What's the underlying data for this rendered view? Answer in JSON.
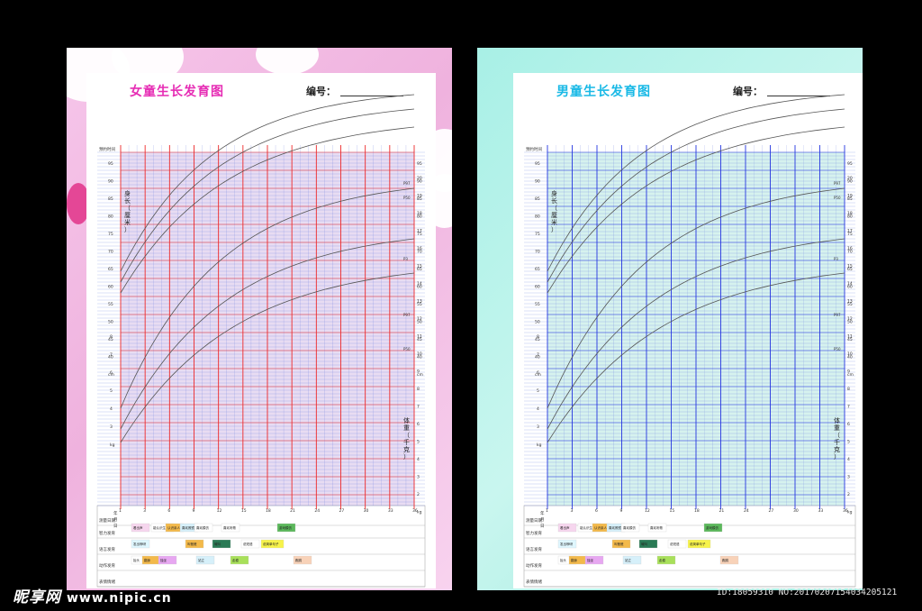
{
  "posters": [
    {
      "key": "girl",
      "title": "女童生长发育图",
      "number_label": "编号：",
      "colors": {
        "major": "#ef2a2a",
        "minor": "#6b7fe0",
        "shade": "#f3e5b0",
        "bg": "#e8dcf2"
      }
    },
    {
      "key": "boy",
      "title": "男童生长发育图",
      "number_label": "编号：",
      "colors": {
        "major": "#2838e0",
        "minor": "#6b7fe0",
        "shade": "#f3e5b0",
        "bg": "#d6f2ee"
      }
    }
  ],
  "chart_labels": {
    "top_row": "预约时间",
    "height_label": [
      "身",
      "长",
      "（",
      "厘",
      "米",
      "）"
    ],
    "weight_label": [
      "体",
      "重",
      "（",
      "千",
      "克",
      "）"
    ],
    "height_unit": "cm",
    "weight_unit": "kg",
    "height_ticks": [
      95,
      90,
      85,
      80,
      75,
      70,
      65,
      60,
      55,
      50,
      45,
      40,
      "cm"
    ],
    "weight_ticks_left": [
      8,
      7,
      6,
      5,
      4,
      3,
      "kg"
    ],
    "weight_ticks_right": [
      20,
      19,
      18,
      17,
      16,
      15,
      14,
      13,
      12,
      11,
      10,
      9,
      8,
      7,
      6,
      5,
      4,
      3,
      2,
      "kg"
    ],
    "age_ticks": [
      1,
      3,
      6,
      9,
      12,
      15,
      18,
      21,
      24,
      27,
      30,
      33,
      36
    ],
    "curve_labels": [
      "P97",
      "P50",
      "P3"
    ],
    "bottom_rows": [
      "测量日期",
      "智力发育",
      "语言发育",
      "动作发育",
      "表情情绪"
    ],
    "measure_sub": [
      "年",
      "月",
      "日"
    ]
  },
  "milestones": {
    "intel": [
      "看出声",
      "能认识生人",
      "认识亲人",
      "喜欢照镜",
      "喜欢模仿",
      "喜欢听歌",
      "游戏模仿"
    ],
    "lang": [
      "发出咿呀",
      "叫爸爸",
      "喊叫",
      "说短语",
      "说简单句子"
    ],
    "motion": [
      "抬头",
      "翻身",
      "独坐",
      "站立",
      "走稳",
      "跑跳"
    ],
    "emotion": [
      "微笑",
      "笑出声"
    ]
  },
  "watermark": {
    "text": "昵享网",
    "url": "www.nipic.cn"
  },
  "image_id": "ID:18059310 NO:20170207154034205121"
}
